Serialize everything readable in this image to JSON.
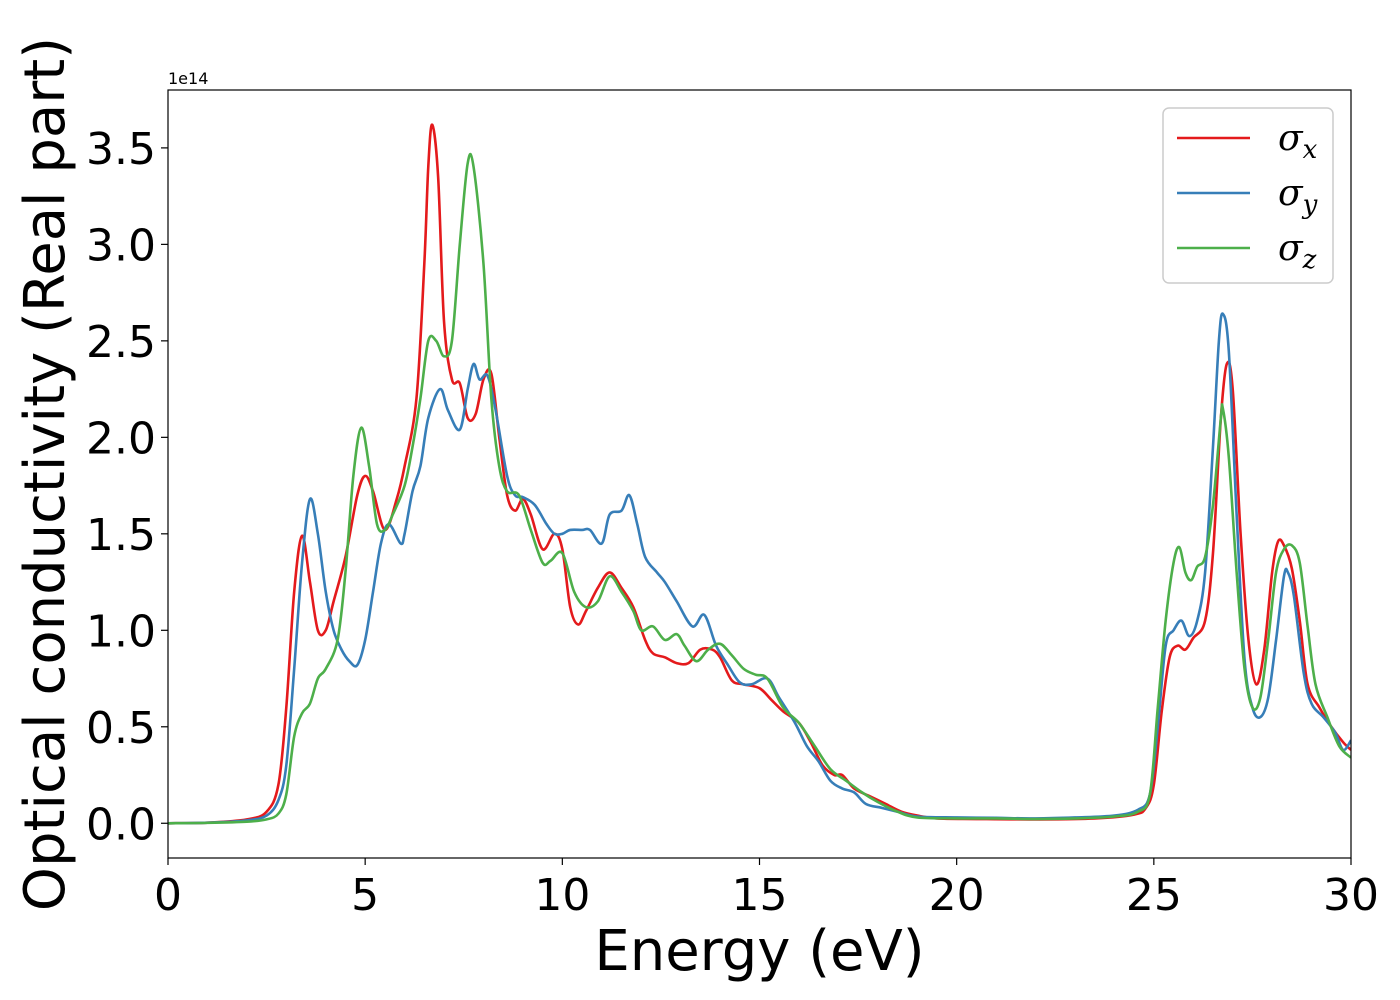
{
  "chart_data": {
    "type": "line",
    "title": "",
    "xlabel": "Energy (eV)",
    "ylabel": "Optical conductivity (Real part)",
    "y_offset_label": "1e14",
    "xlim": [
      0,
      30
    ],
    "ylim": [
      -0.18,
      3.8
    ],
    "xticks": [
      0,
      5,
      10,
      15,
      20,
      25,
      30
    ],
    "xtick_labels": [
      "0",
      "5",
      "10",
      "15",
      "20",
      "25",
      "30"
    ],
    "yticks": [
      0.0,
      0.5,
      1.0,
      1.5,
      2.0,
      2.5,
      3.0,
      3.5
    ],
    "ytick_labels": [
      "0.0",
      "0.5",
      "1.0",
      "1.5",
      "2.0",
      "2.5",
      "3.0",
      "3.5"
    ],
    "grid": false,
    "legend_placement": "top-right",
    "series": [
      {
        "name": "σx",
        "symbol": "σ",
        "sub": "x",
        "color": "#e41a1c",
        "points": [
          [
            0,
            0
          ],
          [
            1,
            0.003
          ],
          [
            2,
            0.02
          ],
          [
            2.5,
            0.06
          ],
          [
            2.8,
            0.2
          ],
          [
            3.0,
            0.6
          ],
          [
            3.2,
            1.2
          ],
          [
            3.4,
            1.49
          ],
          [
            3.6,
            1.25
          ],
          [
            3.8,
            1.0
          ],
          [
            4.0,
            1.0
          ],
          [
            4.2,
            1.15
          ],
          [
            4.5,
            1.38
          ],
          [
            4.8,
            1.7
          ],
          [
            5.0,
            1.8
          ],
          [
            5.2,
            1.72
          ],
          [
            5.5,
            1.52
          ],
          [
            5.8,
            1.68
          ],
          [
            6.0,
            1.85
          ],
          [
            6.3,
            2.2
          ],
          [
            6.5,
            2.9
          ],
          [
            6.6,
            3.4
          ],
          [
            6.7,
            3.62
          ],
          [
            6.85,
            3.35
          ],
          [
            7.0,
            2.6
          ],
          [
            7.2,
            2.3
          ],
          [
            7.4,
            2.28
          ],
          [
            7.6,
            2.1
          ],
          [
            7.8,
            2.12
          ],
          [
            8.0,
            2.3
          ],
          [
            8.2,
            2.33
          ],
          [
            8.4,
            2.0
          ],
          [
            8.6,
            1.7
          ],
          [
            8.8,
            1.62
          ],
          [
            9.0,
            1.68
          ],
          [
            9.2,
            1.6
          ],
          [
            9.5,
            1.42
          ],
          [
            9.8,
            1.5
          ],
          [
            10.0,
            1.42
          ],
          [
            10.2,
            1.12
          ],
          [
            10.4,
            1.03
          ],
          [
            10.6,
            1.1
          ],
          [
            10.9,
            1.22
          ],
          [
            11.2,
            1.3
          ],
          [
            11.5,
            1.22
          ],
          [
            11.8,
            1.12
          ],
          [
            12.1,
            0.95
          ],
          [
            12.3,
            0.88
          ],
          [
            12.6,
            0.86
          ],
          [
            12.9,
            0.83
          ],
          [
            13.2,
            0.83
          ],
          [
            13.5,
            0.9
          ],
          [
            13.8,
            0.9
          ],
          [
            14.0,
            0.86
          ],
          [
            14.3,
            0.74
          ],
          [
            14.6,
            0.72
          ],
          [
            15.0,
            0.7
          ],
          [
            15.3,
            0.64
          ],
          [
            15.6,
            0.58
          ],
          [
            16.0,
            0.52
          ],
          [
            16.3,
            0.42
          ],
          [
            16.6,
            0.3
          ],
          [
            16.9,
            0.25
          ],
          [
            17.1,
            0.25
          ],
          [
            17.4,
            0.18
          ],
          [
            17.8,
            0.14
          ],
          [
            18.2,
            0.1
          ],
          [
            18.6,
            0.06
          ],
          [
            19.0,
            0.04
          ],
          [
            19.5,
            0.025
          ],
          [
            20.5,
            0.022
          ],
          [
            22,
            0.02
          ],
          [
            23.5,
            0.025
          ],
          [
            24.5,
            0.045
          ],
          [
            24.8,
            0.08
          ],
          [
            25.0,
            0.2
          ],
          [
            25.2,
            0.58
          ],
          [
            25.4,
            0.86
          ],
          [
            25.6,
            0.92
          ],
          [
            25.8,
            0.9
          ],
          [
            26.0,
            0.96
          ],
          [
            26.3,
            1.05
          ],
          [
            26.5,
            1.4
          ],
          [
            26.7,
            2.1
          ],
          [
            26.85,
            2.38
          ],
          [
            27.0,
            2.25
          ],
          [
            27.2,
            1.5
          ],
          [
            27.4,
            0.95
          ],
          [
            27.6,
            0.72
          ],
          [
            27.8,
            0.9
          ],
          [
            28.0,
            1.3
          ],
          [
            28.15,
            1.46
          ],
          [
            28.3,
            1.44
          ],
          [
            28.5,
            1.32
          ],
          [
            28.7,
            1.05
          ],
          [
            28.9,
            0.72
          ],
          [
            29.2,
            0.6
          ],
          [
            29.5,
            0.5
          ],
          [
            29.8,
            0.42
          ],
          [
            30.0,
            0.38
          ]
        ]
      },
      {
        "name": "σy",
        "symbol": "σ",
        "sub": "y",
        "color": "#377eb8",
        "points": [
          [
            0,
            0
          ],
          [
            1,
            0.003
          ],
          [
            2,
            0.015
          ],
          [
            2.5,
            0.04
          ],
          [
            2.8,
            0.12
          ],
          [
            3.0,
            0.3
          ],
          [
            3.2,
            0.8
          ],
          [
            3.4,
            1.35
          ],
          [
            3.6,
            1.68
          ],
          [
            3.8,
            1.5
          ],
          [
            4.0,
            1.2
          ],
          [
            4.2,
            1.0
          ],
          [
            4.4,
            0.9
          ],
          [
            4.6,
            0.84
          ],
          [
            4.8,
            0.82
          ],
          [
            5.0,
            0.95
          ],
          [
            5.2,
            1.2
          ],
          [
            5.4,
            1.45
          ],
          [
            5.6,
            1.55
          ],
          [
            5.9,
            1.45
          ],
          [
            6.0,
            1.5
          ],
          [
            6.2,
            1.72
          ],
          [
            6.4,
            1.85
          ],
          [
            6.6,
            2.1
          ],
          [
            6.9,
            2.25
          ],
          [
            7.1,
            2.14
          ],
          [
            7.4,
            2.04
          ],
          [
            7.6,
            2.25
          ],
          [
            7.75,
            2.38
          ],
          [
            7.9,
            2.3
          ],
          [
            8.1,
            2.32
          ],
          [
            8.3,
            2.15
          ],
          [
            8.6,
            1.8
          ],
          [
            8.8,
            1.7
          ],
          [
            9.0,
            1.69
          ],
          [
            9.3,
            1.65
          ],
          [
            9.6,
            1.55
          ],
          [
            9.8,
            1.5
          ],
          [
            10.0,
            1.5
          ],
          [
            10.2,
            1.52
          ],
          [
            10.5,
            1.52
          ],
          [
            10.7,
            1.52
          ],
          [
            11.0,
            1.45
          ],
          [
            11.2,
            1.6
          ],
          [
            11.5,
            1.62
          ],
          [
            11.7,
            1.7
          ],
          [
            11.9,
            1.55
          ],
          [
            12.1,
            1.38
          ],
          [
            12.4,
            1.3
          ],
          [
            12.6,
            1.25
          ],
          [
            12.9,
            1.15
          ],
          [
            13.3,
            1.02
          ],
          [
            13.6,
            1.08
          ],
          [
            13.9,
            0.92
          ],
          [
            14.2,
            0.82
          ],
          [
            14.5,
            0.73
          ],
          [
            14.8,
            0.72
          ],
          [
            15.2,
            0.75
          ],
          [
            15.5,
            0.65
          ],
          [
            15.9,
            0.52
          ],
          [
            16.2,
            0.4
          ],
          [
            16.5,
            0.32
          ],
          [
            16.8,
            0.22
          ],
          [
            17.1,
            0.18
          ],
          [
            17.4,
            0.16
          ],
          [
            17.7,
            0.1
          ],
          [
            18.1,
            0.08
          ],
          [
            18.5,
            0.06
          ],
          [
            19.0,
            0.035
          ],
          [
            20,
            0.03
          ],
          [
            21,
            0.028
          ],
          [
            22,
            0.025
          ],
          [
            23,
            0.03
          ],
          [
            24,
            0.04
          ],
          [
            24.6,
            0.07
          ],
          [
            24.9,
            0.15
          ],
          [
            25.1,
            0.5
          ],
          [
            25.3,
            0.92
          ],
          [
            25.5,
            1.0
          ],
          [
            25.7,
            1.05
          ],
          [
            25.9,
            0.97
          ],
          [
            26.1,
            1.05
          ],
          [
            26.3,
            1.3
          ],
          [
            26.5,
            1.95
          ],
          [
            26.65,
            2.5
          ],
          [
            26.75,
            2.64
          ],
          [
            26.9,
            2.45
          ],
          [
            27.1,
            1.6
          ],
          [
            27.3,
            0.85
          ],
          [
            27.5,
            0.6
          ],
          [
            27.7,
            0.55
          ],
          [
            27.9,
            0.65
          ],
          [
            28.1,
            0.95
          ],
          [
            28.3,
            1.28
          ],
          [
            28.4,
            1.3
          ],
          [
            28.55,
            1.18
          ],
          [
            28.8,
            0.78
          ],
          [
            29.0,
            0.62
          ],
          [
            29.3,
            0.55
          ],
          [
            29.6,
            0.47
          ],
          [
            29.8,
            0.38
          ],
          [
            30.0,
            0.43
          ]
        ]
      },
      {
        "name": "σz",
        "symbol": "σ",
        "sub": "z",
        "color": "#4daf4a",
        "points": [
          [
            0,
            0
          ],
          [
            1,
            0.002
          ],
          [
            2,
            0.008
          ],
          [
            2.5,
            0.02
          ],
          [
            2.8,
            0.05
          ],
          [
            3.0,
            0.15
          ],
          [
            3.2,
            0.45
          ],
          [
            3.4,
            0.57
          ],
          [
            3.6,
            0.62
          ],
          [
            3.8,
            0.75
          ],
          [
            4.0,
            0.8
          ],
          [
            4.3,
            0.95
          ],
          [
            4.5,
            1.3
          ],
          [
            4.7,
            1.8
          ],
          [
            4.9,
            2.05
          ],
          [
            5.1,
            1.85
          ],
          [
            5.3,
            1.55
          ],
          [
            5.5,
            1.52
          ],
          [
            5.7,
            1.6
          ],
          [
            6.0,
            1.75
          ],
          [
            6.2,
            1.95
          ],
          [
            6.4,
            2.2
          ],
          [
            6.6,
            2.5
          ],
          [
            6.8,
            2.5
          ],
          [
            7.0,
            2.42
          ],
          [
            7.2,
            2.5
          ],
          [
            7.4,
            3.0
          ],
          [
            7.6,
            3.42
          ],
          [
            7.75,
            3.4
          ],
          [
            8.0,
            2.9
          ],
          [
            8.2,
            2.2
          ],
          [
            8.4,
            1.85
          ],
          [
            8.6,
            1.72
          ],
          [
            8.9,
            1.7
          ],
          [
            9.2,
            1.52
          ],
          [
            9.5,
            1.35
          ],
          [
            9.7,
            1.36
          ],
          [
            10.0,
            1.4
          ],
          [
            10.3,
            1.2
          ],
          [
            10.6,
            1.12
          ],
          [
            10.9,
            1.15
          ],
          [
            11.2,
            1.28
          ],
          [
            11.5,
            1.2
          ],
          [
            11.8,
            1.1
          ],
          [
            12.0,
            1.0
          ],
          [
            12.3,
            1.02
          ],
          [
            12.6,
            0.95
          ],
          [
            12.9,
            0.98
          ],
          [
            13.1,
            0.92
          ],
          [
            13.4,
            0.84
          ],
          [
            13.7,
            0.9
          ],
          [
            14.0,
            0.93
          ],
          [
            14.3,
            0.87
          ],
          [
            14.6,
            0.8
          ],
          [
            14.9,
            0.77
          ],
          [
            15.2,
            0.75
          ],
          [
            15.6,
            0.6
          ],
          [
            16.0,
            0.52
          ],
          [
            16.4,
            0.4
          ],
          [
            16.8,
            0.28
          ],
          [
            17.2,
            0.22
          ],
          [
            17.6,
            0.16
          ],
          [
            18.0,
            0.11
          ],
          [
            18.5,
            0.06
          ],
          [
            19.0,
            0.03
          ],
          [
            20,
            0.025
          ],
          [
            21,
            0.025
          ],
          [
            22,
            0.022
          ],
          [
            23,
            0.025
          ],
          [
            24,
            0.035
          ],
          [
            24.6,
            0.06
          ],
          [
            24.9,
            0.15
          ],
          [
            25.1,
            0.6
          ],
          [
            25.3,
            1.05
          ],
          [
            25.5,
            1.35
          ],
          [
            25.65,
            1.43
          ],
          [
            25.8,
            1.3
          ],
          [
            25.95,
            1.26
          ],
          [
            26.1,
            1.33
          ],
          [
            26.3,
            1.38
          ],
          [
            26.5,
            1.65
          ],
          [
            26.7,
            2.1
          ],
          [
            26.75,
            2.15
          ],
          [
            26.9,
            1.9
          ],
          [
            27.1,
            1.3
          ],
          [
            27.3,
            0.8
          ],
          [
            27.5,
            0.6
          ],
          [
            27.7,
            0.65
          ],
          [
            27.9,
            0.95
          ],
          [
            28.1,
            1.3
          ],
          [
            28.3,
            1.42
          ],
          [
            28.5,
            1.44
          ],
          [
            28.7,
            1.35
          ],
          [
            28.9,
            1.02
          ],
          [
            29.1,
            0.72
          ],
          [
            29.4,
            0.55
          ],
          [
            29.7,
            0.4
          ],
          [
            30.0,
            0.34
          ]
        ]
      }
    ]
  }
}
